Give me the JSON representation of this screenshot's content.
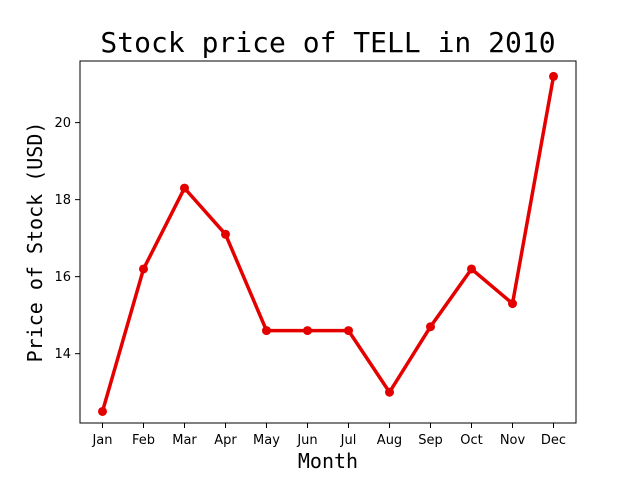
{
  "chart_data": {
    "type": "line",
    "title": "Stock price of TELL in 2010",
    "xlabel": "Month",
    "ylabel": "Price of Stock (USD)",
    "categories": [
      "Jan",
      "Feb",
      "Mar",
      "Apr",
      "May",
      "Jun",
      "Jul",
      "Aug",
      "Sep",
      "Oct",
      "Nov",
      "Dec"
    ],
    "series": [
      {
        "values": [
          12.5,
          16.2,
          18.3,
          17.1,
          14.6,
          14.6,
          14.6,
          13.0,
          14.7,
          16.2,
          15.3,
          21.2
        ]
      }
    ],
    "yticks": [
      14,
      16,
      18,
      20
    ],
    "ylim": [
      12.2,
      21.6
    ],
    "grid": false,
    "colors": {
      "line": "#e50000"
    }
  }
}
